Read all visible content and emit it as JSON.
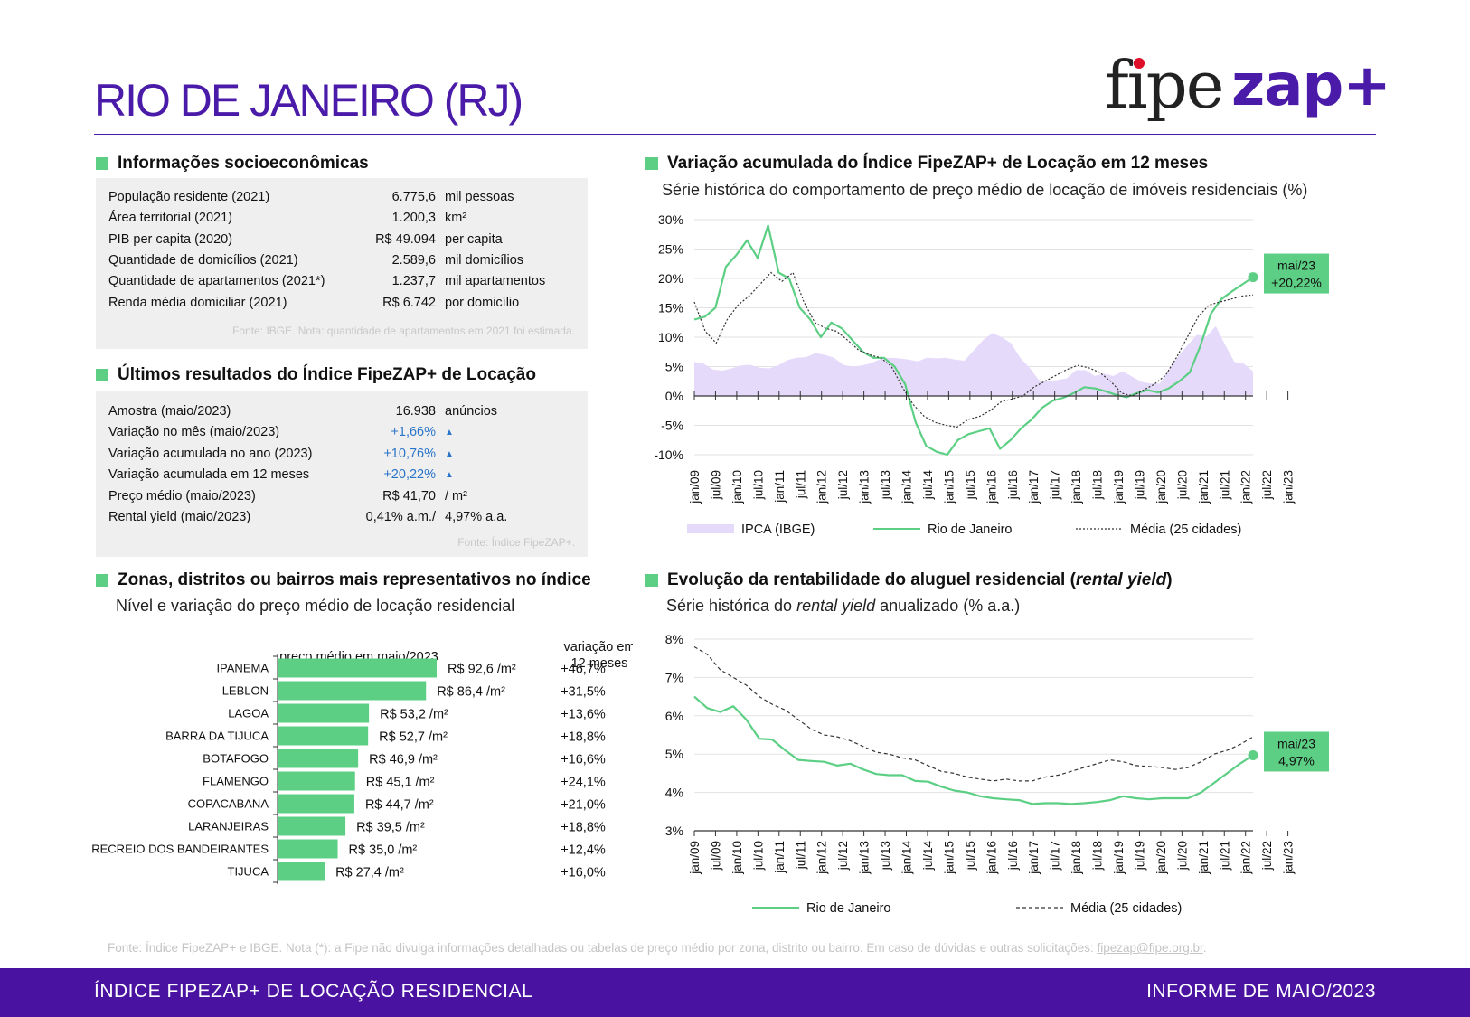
{
  "header": {
    "title": "RIO DE JANEIRO (RJ)",
    "logo_fipe": "fipe",
    "logo_zap": "zap+"
  },
  "socio": {
    "title": "Informações socioeconômicas",
    "rows": [
      {
        "label": "População residente (2021)",
        "value": "6.775,6",
        "unit": "mil pessoas"
      },
      {
        "label": "Área territorial (2021)",
        "value": "1.200,3",
        "unit": "km²"
      },
      {
        "label": "PIB per capita (2020)",
        "value": "R$ 49.094",
        "unit": "per capita"
      },
      {
        "label": "Quantidade de domicílios (2021)",
        "value": "2.589,6",
        "unit": "mil domicílios"
      },
      {
        "label": "Quantidade de apartamentos (2021*)",
        "value": "1.237,7",
        "unit": "mil apartamentos"
      },
      {
        "label": "Renda média domiciliar (2021)",
        "value": "R$ 6.742",
        "unit": "por domicílio"
      }
    ],
    "source": "Fonte: IBGE. Nota: quantidade de apartamentos em 2021 foi estimada."
  },
  "results": {
    "title": "Últimos resultados do Índice FipeZAP+ de Locação",
    "rows": [
      {
        "label": "Amostra (maio/2023)",
        "value": "16.938",
        "unit": "anúncios",
        "blue": false
      },
      {
        "label": "Variação no mês (maio/2023)",
        "value": "+1,66%",
        "unit": "▲",
        "blue": true
      },
      {
        "label": "Variação acumulada no ano (2023)",
        "value": "+10,76%",
        "unit": "▲",
        "blue": true
      },
      {
        "label": "Variação acumulada em 12 meses",
        "value": "+20,22%",
        "unit": "▲",
        "blue": true
      },
      {
        "label": "Preço médio (maio/2023)",
        "value": "R$ 41,70",
        "unit": "/ m²",
        "blue": false
      },
      {
        "label": "Rental yield (maio/2023)",
        "value": "0,41% a.m./",
        "unit": "4,97% a.a.",
        "blue": false
      }
    ],
    "source": "Fonte: Índice FipeZAP+."
  },
  "zones": {
    "title": "Zonas, distritos ou bairros mais representativos no índice",
    "subtitle": "Nível e variação do preço médio de locação residencial",
    "col_price": "preço médio em maio/2023",
    "col_var_1": "variação em",
    "col_var_2": "12 meses"
  },
  "variation": {
    "title": "Variação acumulada do Índice FipeZAP+ de Locação em 12 meses",
    "subtitle": "Série histórica do comportamento de preço médio de locação de imóveis residenciais (%)",
    "callout_1": "mai/23",
    "callout_2": "+20,22%"
  },
  "yield": {
    "title_a": "Evolução da rentabilidade do aluguel residencial (",
    "title_b": "rental yield",
    "title_c": ")",
    "subtitle_a": "Série histórica do ",
    "subtitle_b": "rental yield",
    "subtitle_c": " anualizado (% a.a.)",
    "callout_1": "mai/23",
    "callout_2": "4,97%"
  },
  "footer": {
    "source": "Fonte: Índice FipeZAP+ e IBGE. Nota (*): a Fipe não divulga informações detalhadas ou tabelas de preço médio por zona, distrito ou bairro. Em caso de dúvidas e outras solicitações: ",
    "email": "fipezap@fipe.org.br",
    "source_end": ".",
    "band_left": "ÍNDICE FIPEZAP+ DE LOCAÇÃO RESIDENCIAL",
    "band_right": "INFORME DE MAIO/2023"
  },
  "colors": {
    "purple": "#4a1aa8",
    "green": "#5ccf84",
    "lilac": "#e6dafa",
    "blue": "#2a74c9"
  },
  "chart_data": [
    {
      "type": "bar",
      "orientation": "horizontal",
      "categories": [
        "IPANEMA",
        "LEBLON",
        "LAGOA",
        "BARRA DA TIJUCA",
        "BOTAFOGO",
        "FLAMENGO",
        "COPACABANA",
        "LARANJEIRAS",
        "RECREIO DOS BANDEIRANTES",
        "TIJUCA"
      ],
      "values": [
        92.6,
        86.4,
        53.2,
        52.7,
        46.9,
        45.1,
        44.7,
        39.5,
        35.0,
        27.4
      ],
      "value_labels": [
        "R$ 92,6 /m²",
        "R$ 86,4 /m²",
        "R$ 53,2 /m²",
        "R$ 52,7 /m²",
        "R$ 46,9 /m²",
        "R$ 45,1 /m²",
        "R$ 44,7 /m²",
        "R$ 39,5 /m²",
        "R$ 35,0 /m²",
        "R$ 27,4 /m²"
      ],
      "variation_labels": [
        "+46,7%",
        "+31,5%",
        "+13,6%",
        "+18,8%",
        "+16,6%",
        "+24,1%",
        "+21,0%",
        "+18,8%",
        "+12,4%",
        "+16,0%"
      ],
      "xlim": [
        0,
        100
      ]
    },
    {
      "type": "line",
      "x_ticks": [
        "jan/09",
        "jul/09",
        "jan/10",
        "jul/10",
        "jan/11",
        "jul/11",
        "jan/12",
        "jul/12",
        "jan/13",
        "jul/13",
        "jan/14",
        "jul/14",
        "jan/15",
        "jul/15",
        "jan/16",
        "jul/16",
        "jan/17",
        "jul/17",
        "jan/18",
        "jul/18",
        "jan/19",
        "jul/19",
        "jan/20",
        "jul/20",
        "jan/21",
        "jul/21",
        "jan/22",
        "jul/22",
        "jan/23"
      ],
      "y_ticks": [
        "30%",
        "25%",
        "20%",
        "15%",
        "10%",
        "5%",
        "0%",
        "-5%",
        "-10%"
      ],
      "ylim": [
        -10,
        30
      ],
      "series": [
        {
          "name": "IPCA (IBGE)",
          "style": "area",
          "values": [
            5.8,
            5.5,
            4.5,
            4.3,
            4.7,
            5.2,
            5.3,
            4.8,
            4.7,
            5.2,
            6.1,
            6.5,
            6.6,
            7.3,
            7.0,
            6.5,
            5.3,
            5.0,
            5.2,
            5.6,
            6.3,
            6.5,
            6.4,
            6.2,
            5.9,
            6.5,
            6.4,
            6.5,
            6.2,
            6.0,
            7.7,
            9.5,
            10.7,
            10.0,
            9.0,
            6.5,
            4.8,
            2.7,
            2.5,
            2.7,
            3.0,
            4.4,
            4.4,
            3.4,
            3.8,
            3.4,
            4.2,
            3.3,
            2.4,
            2.1,
            2.1,
            4.5,
            6.8,
            8.7,
            10.4,
            10.1,
            11.9,
            8.7,
            5.8,
            5.5,
            4.2
          ]
        },
        {
          "name": "Rio de Janeiro",
          "style": "line",
          "values": [
            13.0,
            13.5,
            15.0,
            22.0,
            24.0,
            26.5,
            23.5,
            29.0,
            21.0,
            20.0,
            15.0,
            13.0,
            10.0,
            12.5,
            11.5,
            9.5,
            7.5,
            6.5,
            6.5,
            5.0,
            2.0,
            -4.5,
            -8.5,
            -9.5,
            -10.0,
            -7.5,
            -6.5,
            -6.0,
            -5.5,
            -9.0,
            -7.5,
            -5.5,
            -4.0,
            -2.0,
            -0.8,
            -0.3,
            0.5,
            1.5,
            1.3,
            0.8,
            0.2,
            -0.2,
            0.5,
            1.0,
            0.6,
            1.3,
            2.5,
            4.0,
            8.5,
            14.0,
            16.5,
            17.8,
            19.0,
            20.22
          ]
        },
        {
          "name": "Média (25 cidades)",
          "style": "dashed",
          "values": [
            16.0,
            11.0,
            9.0,
            13.0,
            15.5,
            17.0,
            19.0,
            21.0,
            19.5,
            21.0,
            16.0,
            12.5,
            11.5,
            11.0,
            9.5,
            7.8,
            7.0,
            6.5,
            5.0,
            1.5,
            -1.5,
            -3.5,
            -4.5,
            -5.0,
            -5.3,
            -4.0,
            -3.5,
            -2.5,
            -1.0,
            -0.5,
            0.0,
            1.5,
            2.5,
            3.5,
            4.5,
            5.2,
            4.8,
            4.0,
            2.5,
            0.5,
            0.0,
            1.0,
            2.0,
            3.5,
            6.5,
            10.0,
            13.5,
            15.5,
            16.0,
            16.5,
            17.0,
            17.2
          ]
        }
      ],
      "legend": [
        "IPCA (IBGE)",
        "Rio de Janeiro",
        "Média (25 cidades)"
      ],
      "legend_position": "bottom"
    },
    {
      "type": "line",
      "x_ticks": [
        "jan/09",
        "jul/09",
        "jan/10",
        "jul/10",
        "jan/11",
        "jul/11",
        "jan/12",
        "jul/12",
        "jan/13",
        "jul/13",
        "jan/14",
        "jul/14",
        "jan/15",
        "jul/15",
        "jan/16",
        "jul/16",
        "jan/17",
        "jul/17",
        "jan/18",
        "jul/18",
        "jan/19",
        "jul/19",
        "jan/20",
        "jul/20",
        "jan/21",
        "jul/21",
        "jan/22",
        "jul/22",
        "jan/23"
      ],
      "y_ticks": [
        "8%",
        "7%",
        "6%",
        "5%",
        "4%",
        "3%"
      ],
      "ylim": [
        3,
        8
      ],
      "series": [
        {
          "name": "Rio de Janeiro",
          "style": "line",
          "values": [
            6.5,
            6.2,
            6.1,
            6.25,
            5.9,
            5.4,
            5.38,
            5.1,
            4.85,
            4.82,
            4.8,
            4.7,
            4.75,
            4.6,
            4.48,
            4.45,
            4.45,
            4.3,
            4.28,
            4.15,
            4.05,
            4.0,
            3.9,
            3.85,
            3.82,
            3.8,
            3.7,
            3.72,
            3.72,
            3.7,
            3.72,
            3.75,
            3.8,
            3.9,
            3.85,
            3.82,
            3.85,
            3.85,
            3.85,
            4.0,
            4.25,
            4.5,
            4.75,
            4.97
          ]
        },
        {
          "name": "Média (25 cidades)",
          "style": "dashed",
          "values": [
            7.8,
            7.6,
            7.2,
            7.0,
            6.8,
            6.5,
            6.3,
            6.15,
            5.9,
            5.65,
            5.5,
            5.45,
            5.35,
            5.2,
            5.05,
            5.0,
            4.9,
            4.85,
            4.7,
            4.55,
            4.5,
            4.4,
            4.35,
            4.3,
            4.35,
            4.3,
            4.3,
            4.4,
            4.45,
            4.55,
            4.65,
            4.75,
            4.85,
            4.8,
            4.7,
            4.68,
            4.65,
            4.6,
            4.65,
            4.8,
            5.0,
            5.1,
            5.25,
            5.45
          ]
        }
      ],
      "legend": [
        "Rio de Janeiro",
        "Média (25 cidades)"
      ],
      "legend_position": "bottom"
    }
  ]
}
